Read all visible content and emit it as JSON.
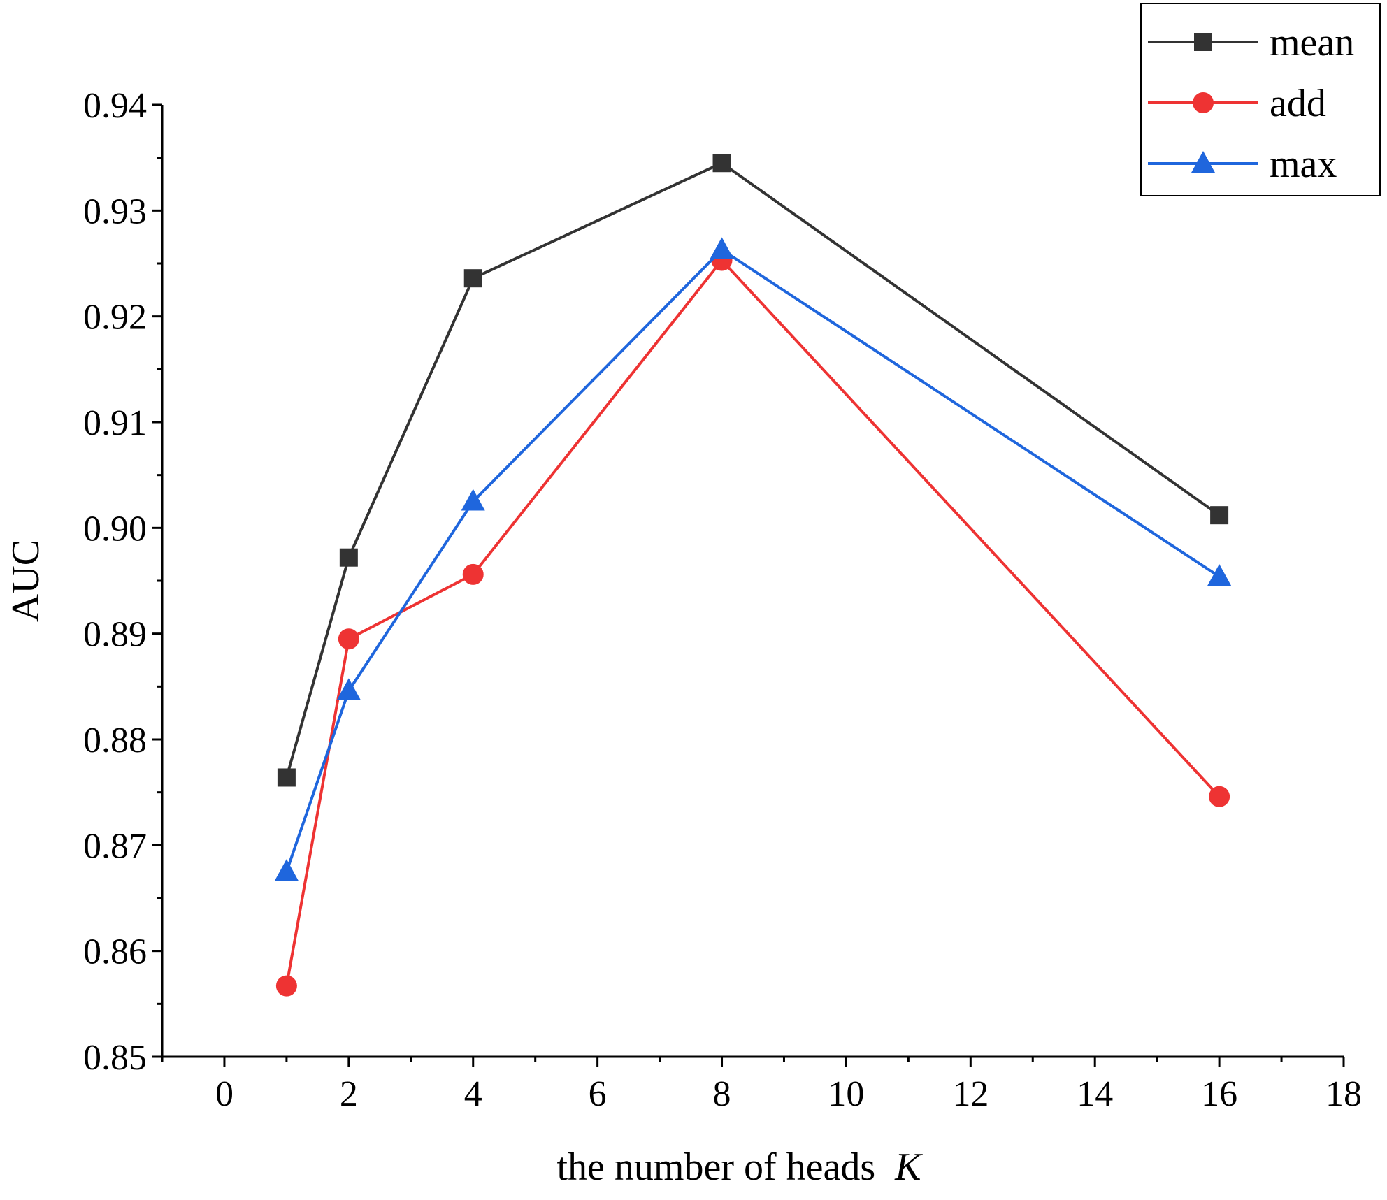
{
  "chart_data": {
    "type": "line",
    "xlabel": "the number of heads",
    "xlabel_var": "K",
    "ylabel": "AUC",
    "xlim": [
      -1,
      18
    ],
    "ylim": [
      0.85,
      0.94
    ],
    "x_ticks": [
      0,
      2,
      4,
      6,
      8,
      10,
      12,
      14,
      16,
      18
    ],
    "y_ticks": [
      0.85,
      0.86,
      0.87,
      0.88,
      0.89,
      0.9,
      0.91,
      0.92,
      0.93,
      0.94
    ],
    "y_tick_labels": [
      "0.85",
      "0.86",
      "0.87",
      "0.88",
      "0.89",
      "0.90",
      "0.91",
      "0.92",
      "0.93",
      "0.94"
    ],
    "grid": false,
    "legend_position": "top-right",
    "x": [
      1,
      2,
      4,
      8,
      16
    ],
    "series": [
      {
        "name": "mean",
        "color": "#333333",
        "marker": "square",
        "values": [
          0.8764,
          0.8972,
          0.9236,
          0.9345,
          0.9012
        ]
      },
      {
        "name": "add",
        "color": "#ee3333",
        "marker": "circle",
        "values": [
          0.8567,
          0.8895,
          0.8956,
          0.9253,
          0.8746
        ]
      },
      {
        "name": "max",
        "color": "#1f66dd",
        "marker": "triangle",
        "values": [
          0.8675,
          0.8846,
          0.9025,
          0.9263,
          0.8954
        ]
      }
    ]
  }
}
